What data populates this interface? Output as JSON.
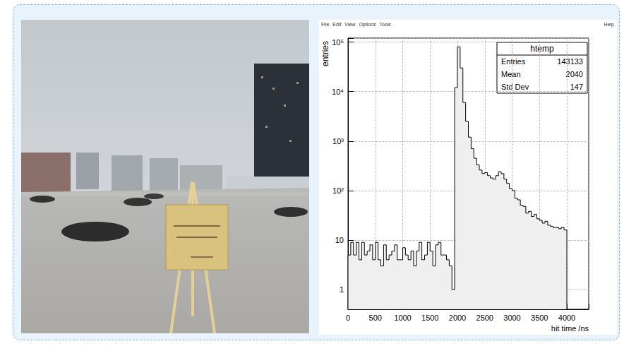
{
  "window": {
    "menu": [
      "File",
      "Edit",
      "View",
      "Options",
      "Tools"
    ],
    "help": "Help"
  },
  "chart_data": {
    "type": "histogram",
    "xlabel": "hit time /ns",
    "ylabel": "entries",
    "bins": [
      0,
      50,
      100,
      150,
      200,
      250,
      300,
      350,
      400,
      450,
      500,
      550,
      600,
      650,
      700,
      750,
      800,
      850,
      900,
      950,
      1000,
      1050,
      1100,
      1150,
      1200,
      1250,
      1300,
      1350,
      1400,
      1450,
      1500,
      1550,
      1600,
      1650,
      1700,
      1750,
      1800,
      1850,
      1900,
      1950,
      2000,
      2050,
      2100,
      2150,
      2200,
      2250,
      2300,
      2350,
      2400,
      2450,
      2500,
      2550,
      2600,
      2650,
      2700,
      2750,
      2800,
      2850,
      2900,
      2950,
      3000,
      3050,
      3100,
      3150,
      3200,
      3250,
      3300,
      3350,
      3400,
      3450,
      3500,
      3550,
      3600,
      3650,
      3700,
      3750,
      3800,
      3850,
      3900,
      3950,
      4000
    ],
    "counts": [
      5,
      9,
      5,
      9,
      4,
      9,
      5,
      6,
      8,
      4,
      9,
      4,
      3,
      8,
      4,
      5,
      6,
      8,
      4,
      4,
      7,
      5,
      4,
      6,
      3,
      6,
      9,
      4,
      5,
      9,
      6,
      3,
      8,
      9,
      5,
      5,
      4,
      3,
      1,
      12000,
      80000,
      30000,
      6000,
      2500,
      1200,
      700,
      450,
      330,
      260,
      220,
      230,
      200,
      180,
      170,
      200,
      240,
      220,
      170,
      140,
      110,
      100,
      70,
      65,
      50,
      48,
      35,
      38,
      30,
      33,
      27,
      25,
      22,
      24,
      20,
      19,
      18,
      18,
      17,
      18,
      16
    ],
    "color": "#efefef",
    "xlim": [
      0,
      4400
    ],
    "xticks": [
      0,
      500,
      1000,
      1500,
      2000,
      2500,
      3000,
      3500,
      4000
    ],
    "ylim": [
      0.4,
      120000
    ],
    "yticks": [
      1,
      10,
      {
        "value": 100,
        "label": "10²"
      },
      {
        "value": 1000,
        "label": "10³"
      },
      {
        "value": 10000,
        "label": "10⁴"
      },
      {
        "value": 100000,
        "label": "10⁵"
      }
    ],
    "log": "y",
    "grid": true,
    "stats": {
      "title": "htemp",
      "rows": [
        {
          "label": "Entries",
          "value": 143133
        },
        {
          "label": "Mean",
          "value": 2040
        },
        {
          "label": "Std Dev",
          "value": 147
        }
      ]
    }
  }
}
